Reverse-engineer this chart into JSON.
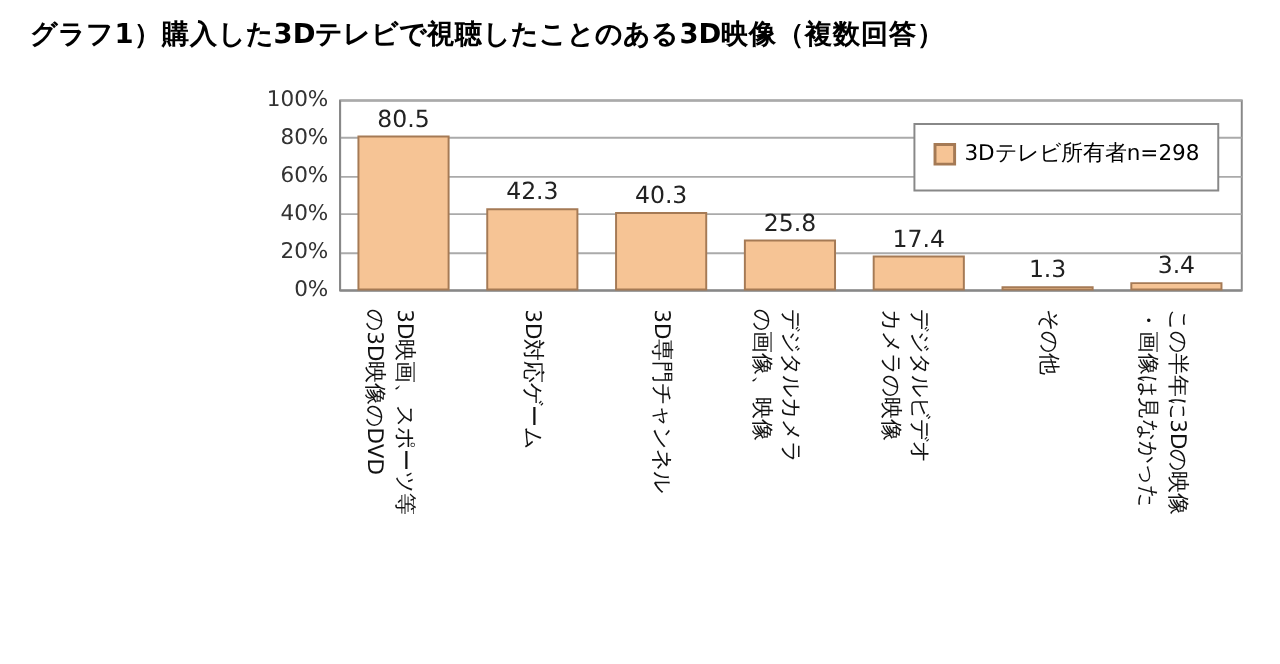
{
  "chart_data": {
    "type": "bar",
    "title": "グラフ1）購入した3Dテレビで視聴したことのある3D映像（複数回答）",
    "categories": [
      "3D映画、スポーツ等の3D映像のDVD",
      "3D対応ゲーム",
      "3D専門チャンネル",
      "デジタルカメラの画像、映像",
      "デジタルビデオカメラの映像",
      "その他",
      "この半年に3Dの映像・画像は見なかった"
    ],
    "series": [
      {
        "name": "3Dテレビ所有者n=298",
        "color": "#f6c495",
        "values": [
          80.5,
          42.3,
          40.3,
          25.8,
          17.4,
          1.3,
          3.4
        ]
      }
    ],
    "ylim": [
      0,
      100
    ],
    "yticks": [
      {
        "value": 0,
        "label": "0%"
      },
      {
        "value": 20,
        "label": "20%"
      },
      {
        "value": 40,
        "label": "40%"
      },
      {
        "value": 60,
        "label": "60%"
      },
      {
        "value": 80,
        "label": "80%"
      },
      {
        "value": 100,
        "label": "100%"
      }
    ],
    "grid": "y",
    "legend": "top right",
    "data_labels": true
  }
}
